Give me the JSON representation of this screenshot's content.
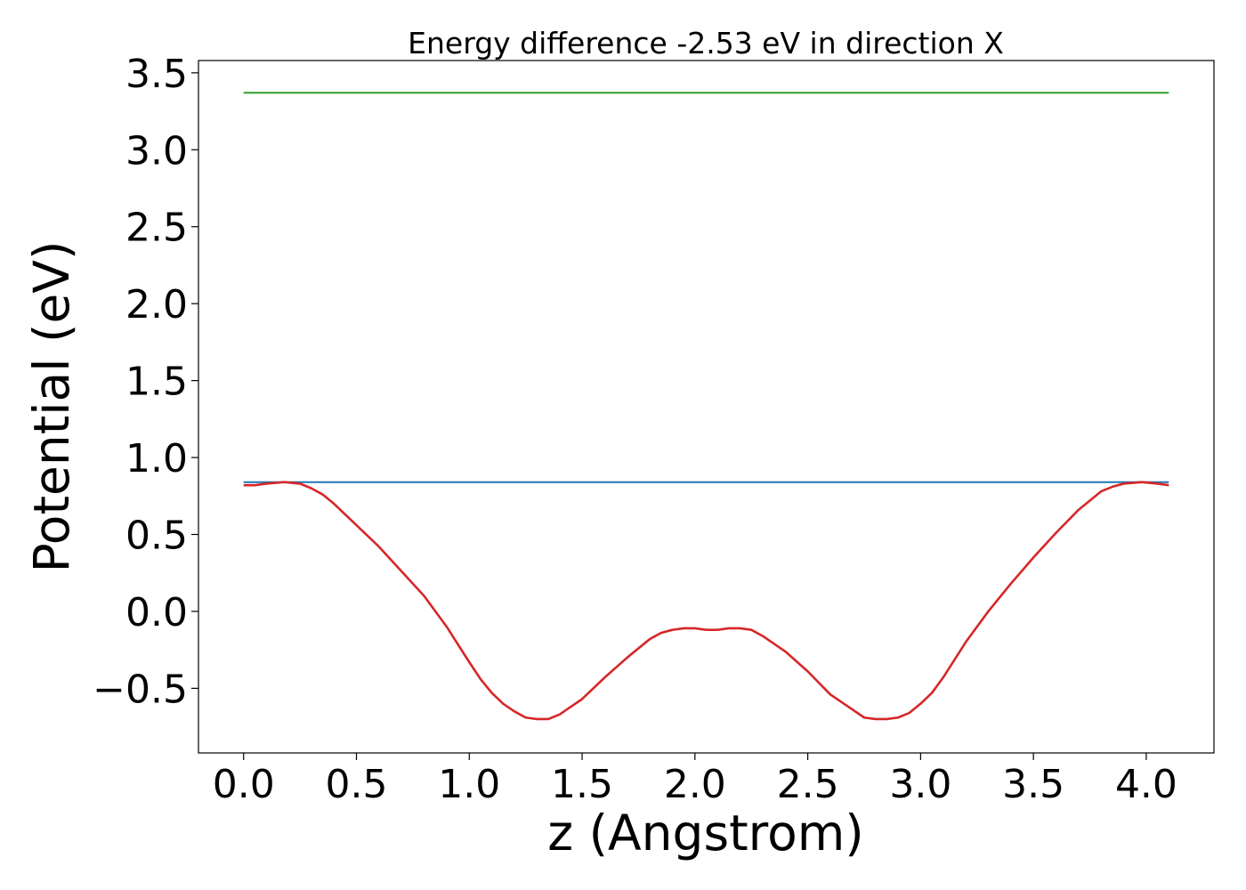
{
  "chart_data": {
    "type": "line",
    "title": "Energy difference -2.53 eV in direction X",
    "xlabel": "z (Angstrom)",
    "ylabel": "Potential (eV)",
    "xlim": [
      -0.2,
      4.3
    ],
    "ylim": [
      -0.92,
      3.58
    ],
    "xticks": [
      0.0,
      0.5,
      1.0,
      1.5,
      2.0,
      2.5,
      3.0,
      3.5,
      4.0
    ],
    "xtick_labels": [
      "0.0",
      "0.5",
      "1.0",
      "1.5",
      "2.0",
      "2.5",
      "3.0",
      "3.5",
      "4.0"
    ],
    "yticks": [
      -0.5,
      0.0,
      0.5,
      1.0,
      1.5,
      2.0,
      2.5,
      3.0,
      3.5
    ],
    "ytick_labels": [
      "−0.5",
      "0.0",
      "0.5",
      "1.0",
      "1.5",
      "2.0",
      "2.5",
      "3.0",
      "3.5"
    ],
    "grid": false,
    "series": [
      {
        "color": "#2ca02c",
        "x": [
          0.0,
          4.1
        ],
        "y": [
          3.37,
          3.37
        ]
      },
      {
        "color": "#1f77b4",
        "x": [
          0.0,
          4.1
        ],
        "y": [
          0.84,
          0.84
        ]
      },
      {
        "color": "#d62728",
        "x": [
          0.0,
          0.05,
          0.1,
          0.18,
          0.25,
          0.3,
          0.35,
          0.4,
          0.5,
          0.6,
          0.7,
          0.8,
          0.9,
          1.0,
          1.05,
          1.1,
          1.15,
          1.2,
          1.25,
          1.3,
          1.35,
          1.4,
          1.5,
          1.6,
          1.7,
          1.8,
          1.85,
          1.9,
          1.95,
          2.0,
          2.05,
          2.1,
          2.15,
          2.2,
          2.25,
          2.3,
          2.4,
          2.5,
          2.6,
          2.7,
          2.75,
          2.8,
          2.85,
          2.9,
          2.95,
          3.0,
          3.05,
          3.1,
          3.2,
          3.3,
          3.4,
          3.5,
          3.6,
          3.7,
          3.8,
          3.85,
          3.9,
          3.98,
          4.05,
          4.1
        ],
        "y": [
          0.82,
          0.82,
          0.83,
          0.84,
          0.83,
          0.8,
          0.76,
          0.7,
          0.56,
          0.42,
          0.26,
          0.1,
          -0.1,
          -0.33,
          -0.44,
          -0.53,
          -0.6,
          -0.65,
          -0.69,
          -0.7,
          -0.7,
          -0.67,
          -0.57,
          -0.43,
          -0.3,
          -0.18,
          -0.14,
          -0.12,
          -0.11,
          -0.11,
          -0.12,
          -0.12,
          -0.11,
          -0.11,
          -0.12,
          -0.16,
          -0.26,
          -0.39,
          -0.54,
          -0.64,
          -0.69,
          -0.7,
          -0.7,
          -0.69,
          -0.66,
          -0.6,
          -0.53,
          -0.43,
          -0.2,
          0.0,
          0.18,
          0.35,
          0.51,
          0.66,
          0.78,
          0.81,
          0.83,
          0.84,
          0.83,
          0.82
        ]
      }
    ]
  }
}
